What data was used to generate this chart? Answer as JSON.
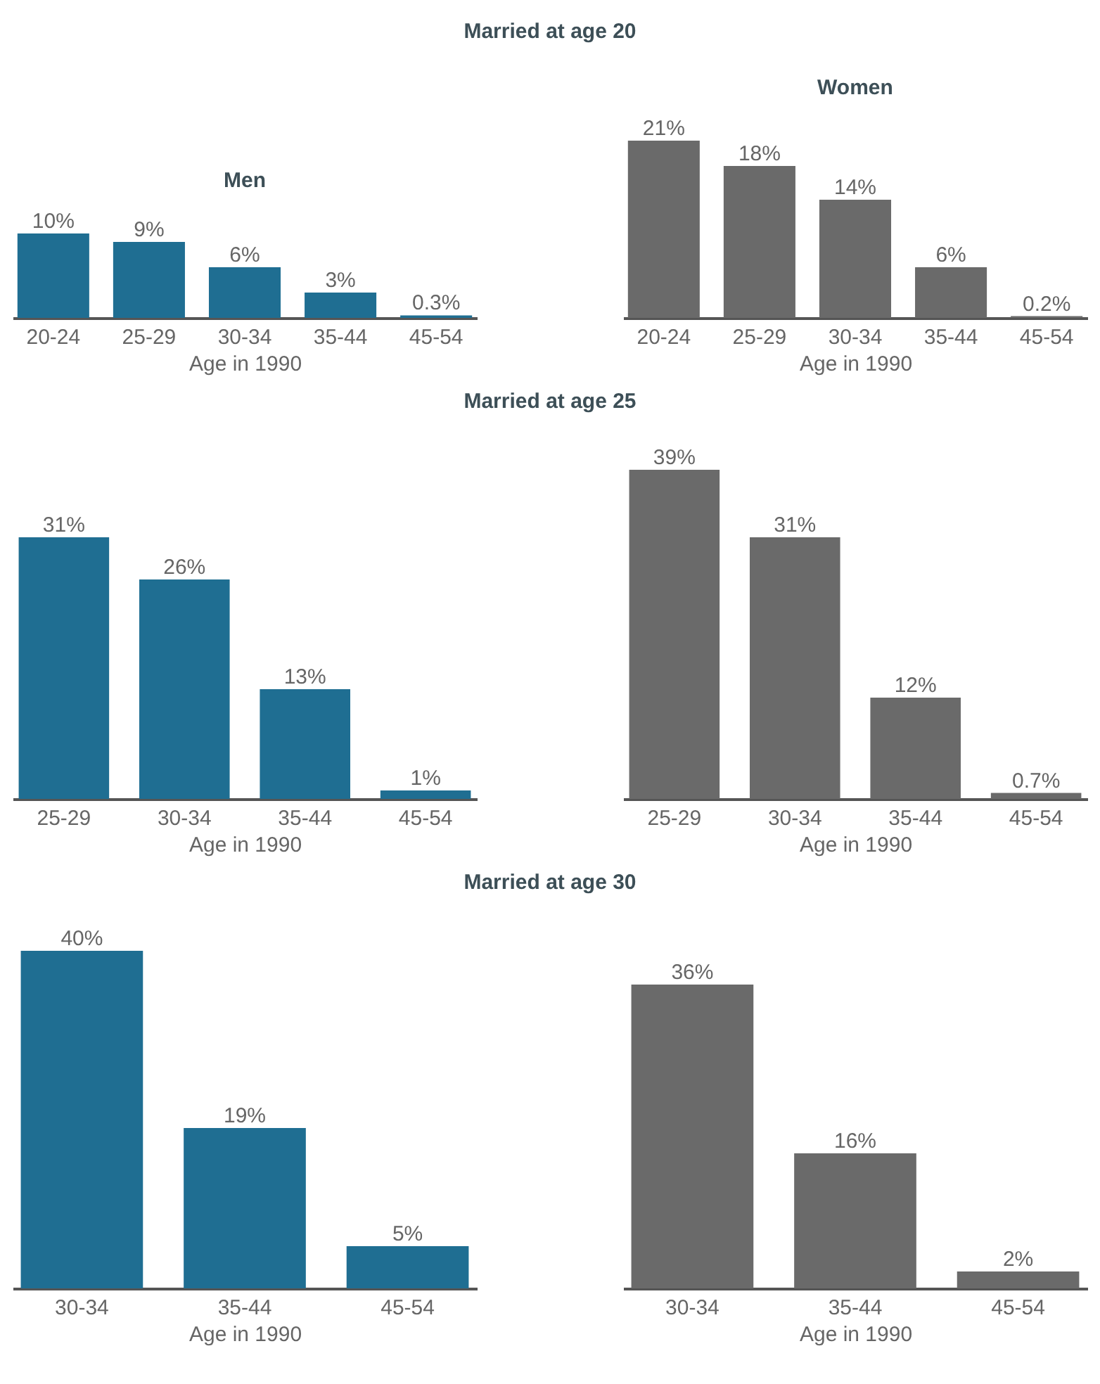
{
  "chart_data": [
    {
      "type": "bar",
      "title": "Men",
      "subtitle": "Married at age 20",
      "categories": [
        "20-24",
        "25-29",
        "30-34",
        "35-44",
        "45-54"
      ],
      "values": [
        10,
        9,
        6,
        3,
        0.3
      ],
      "value_labels": [
        "10%",
        "9%",
        "6%",
        "3%",
        "0.3%"
      ],
      "color": "#1f6e92",
      "xlabel": "Age in 1990"
    },
    {
      "type": "bar",
      "title": "Women",
      "categories": [
        "20-24",
        "25-29",
        "30-34",
        "35-44",
        "45-54"
      ],
      "values": [
        21,
        18,
        14,
        6,
        0.2
      ],
      "value_labels": [
        "21%",
        "18%",
        "14%",
        "6%",
        "0.2%"
      ],
      "color": "#6a6a6a",
      "xlabel": "Age in 1990"
    },
    {
      "type": "bar",
      "subtitle": "Married at age 25",
      "categories": [
        "25-29",
        "30-34",
        "35-44",
        "45-54"
      ],
      "values": [
        31,
        26,
        13,
        1
      ],
      "value_labels": [
        "31%",
        "26%",
        "13%",
        "1%"
      ],
      "color": "#1f6e92",
      "xlabel": "Age in 1990"
    },
    {
      "type": "bar",
      "categories": [
        "25-29",
        "30-34",
        "35-44",
        "45-54"
      ],
      "values": [
        39,
        31,
        12,
        0.7
      ],
      "value_labels": [
        "39%",
        "31%",
        "12%",
        "0.7%"
      ],
      "color": "#6a6a6a",
      "xlabel": "Age in 1990"
    },
    {
      "type": "bar",
      "subtitle": "Married at age 30",
      "categories": [
        "30-34",
        "35-44",
        "45-54"
      ],
      "values": [
        40,
        19,
        5
      ],
      "value_labels": [
        "40%",
        "19%",
        "5%"
      ],
      "color": "#1f6e92",
      "xlabel": "Age in 1990"
    },
    {
      "type": "bar",
      "categories": [
        "30-34",
        "35-44",
        "45-54"
      ],
      "values": [
        36,
        16,
        2
      ],
      "value_labels": [
        "36%",
        "16%",
        "2%"
      ],
      "color": "#6a6a6a",
      "xlabel": "Age in 1990"
    }
  ]
}
